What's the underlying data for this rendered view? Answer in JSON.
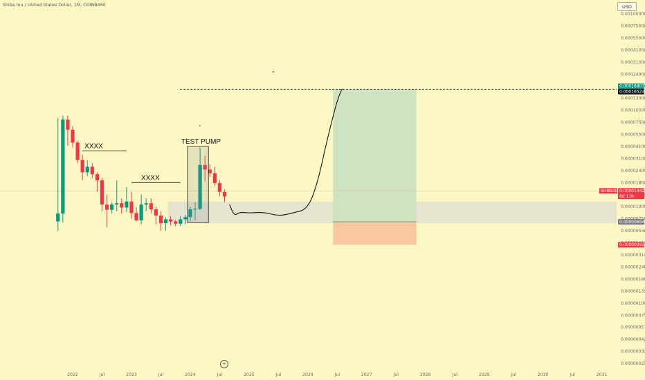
{
  "header": {
    "title": "Shiba Inu / United States Dollar, 1M, COINBASE"
  },
  "currency_button": "USD",
  "watermark": "trading-view-logo-icon",
  "price_badges": {
    "target_price": "0.00016807",
    "current_line_price": "0.00016524",
    "symbol_label": "SHIBUSD",
    "symbol_price": "0.00001442",
    "countdown": "8d 11h",
    "entry_price": "0.00000694",
    "stop_price": "0.00000393"
  },
  "annotations": {
    "xxxx_1": "XXXX",
    "xxxx_2": "XXXX",
    "test_pump": "TEST PUMP"
  },
  "colors": {
    "background": "#fdf7c3",
    "up": "#089981",
    "down": "#f23645",
    "profit_zone": "#cfe3c0",
    "loss_zone": "#f9c8a0",
    "range_zone": "#e6e3cf",
    "target_badge": "#089981",
    "current_badge": "#131722",
    "entry_badge": "#787b86",
    "stop_badge": "#f23645"
  },
  "chart_data": {
    "type": "candlestick",
    "title": "Shiba Inu / United States Dollar, 1M, COINBASE",
    "y_scale": "log",
    "y_ticks": [
      "0.00100000",
      "0.00075000",
      "0.00055000",
      "0.00041000",
      "0.00031000",
      "0.00024000",
      "0.00018000",
      "0.00013000",
      "0.00010000",
      "0.00007500",
      "0.00005500",
      "0.00004100",
      "0.00003100",
      "0.00002400",
      "0.00001800",
      "0.00001300",
      "0.00001000",
      "0.00000750",
      "0.00000550",
      "0.00000410",
      "0.00000310",
      "0.00000240",
      "0.00000180",
      "0.00000135",
      "0.00000100",
      "0.00000075",
      "0.00000057",
      "0.00000042",
      "0.00000033",
      "0.00000025"
    ],
    "x_ticks": [
      "2022",
      "Jul",
      "2023",
      "Jul",
      "2024",
      "Jul",
      "2025",
      "Jul",
      "2026",
      "Jul",
      "2027",
      "Jul",
      "2028",
      "Jul",
      "2029",
      "Jul",
      "2030",
      "Jul",
      "2031"
    ],
    "candles": [
      {
        "date": "2021-10",
        "o": 7e-06,
        "h": 8.3e-05,
        "l": 5.5e-06,
        "c": 8.5e-06
      },
      {
        "date": "2021-11",
        "o": 8.5e-06,
        "h": 8.8e-05,
        "l": 6.8e-06,
        "c": 8e-05
      },
      {
        "date": "2021-12",
        "o": 8e-05,
        "h": 8.8e-05,
        "l": 4.2e-05,
        "c": 6.2e-05
      },
      {
        "date": "2022-01",
        "o": 6.2e-05,
        "h": 6.8e-05,
        "l": 4e-05,
        "c": 4.5e-05
      },
      {
        "date": "2022-02",
        "o": 4.5e-05,
        "h": 4.7e-05,
        "l": 2.8e-05,
        "c": 3e-05
      },
      {
        "date": "2022-03",
        "o": 3e-05,
        "h": 3.4e-05,
        "l": 1.9e-05,
        "c": 2.3e-05
      },
      {
        "date": "2022-04",
        "o": 2.3e-05,
        "h": 3e-05,
        "l": 2.1e-05,
        "c": 2.6e-05
      },
      {
        "date": "2022-05",
        "o": 2.6e-05,
        "h": 2.8e-05,
        "l": 2e-05,
        "c": 2.2e-05
      },
      {
        "date": "2022-06",
        "o": 2.2e-05,
        "h": 2.3e-05,
        "l": 1.4e-05,
        "c": 1.9e-05
      },
      {
        "date": "2022-07",
        "o": 1.9e-05,
        "h": 2e-05,
        "l": 9e-06,
        "c": 1.05e-05
      },
      {
        "date": "2022-08",
        "o": 1.05e-05,
        "h": 1.3e-05,
        "l": 6e-06,
        "c": 9.3e-06
      },
      {
        "date": "2022-09",
        "o": 9.3e-06,
        "h": 1.1e-05,
        "l": 8.5e-06,
        "c": 1.05e-05
      },
      {
        "date": "2022-10",
        "o": 1.05e-05,
        "h": 1.9e-05,
        "l": 9e-06,
        "c": 1.08e-05
      },
      {
        "date": "2022-11",
        "o": 1.08e-05,
        "h": 1.2e-05,
        "l": 8.5e-06,
        "c": 9.8e-06
      },
      {
        "date": "2022-12",
        "o": 9.8e-06,
        "h": 1.6e-05,
        "l": 8.8e-06,
        "c": 1.12e-05
      },
      {
        "date": "2023-01",
        "o": 1.12e-05,
        "h": 1.4e-05,
        "l": 7.5e-06,
        "c": 8.6e-06
      },
      {
        "date": "2023-02",
        "o": 8.6e-06,
        "h": 9.9e-06,
        "l": 7e-06,
        "c": 7.2e-06
      },
      {
        "date": "2023-03",
        "o": 7.2e-06,
        "h": 1.3e-05,
        "l": 6.5e-06,
        "c": 1.05e-05
      },
      {
        "date": "2023-04",
        "o": 1.05e-05,
        "h": 1.2e-05,
        "l": 9e-06,
        "c": 1.08e-05
      },
      {
        "date": "2023-05",
        "o": 1.08e-05,
        "h": 1.2e-05,
        "l": 8.5e-06,
        "c": 9.4e-06
      },
      {
        "date": "2023-06",
        "o": 9.4e-06,
        "h": 1e-05,
        "l": 6.5e-06,
        "c": 8.1e-06
      },
      {
        "date": "2023-07",
        "o": 8.1e-06,
        "h": 9e-06,
        "l": 5.5e-06,
        "c": 6.7e-06
      },
      {
        "date": "2023-08",
        "o": 6.7e-06,
        "h": 7.8e-06,
        "l": 5.5e-06,
        "c": 7.4e-06
      },
      {
        "date": "2023-09",
        "o": 7.4e-06,
        "h": 8e-06,
        "l": 6.3e-06,
        "c": 7e-06
      },
      {
        "date": "2023-10",
        "o": 7e-06,
        "h": 7.3e-06,
        "l": 6.2e-06,
        "c": 6.6e-06
      },
      {
        "date": "2023-11",
        "o": 6.6e-06,
        "h": 8e-06,
        "l": 6.2e-06,
        "c": 7.4e-06
      },
      {
        "date": "2023-12",
        "o": 7.4e-06,
        "h": 8.2e-06,
        "l": 6.5e-06,
        "c": 7.8e-06
      },
      {
        "date": "2024-01",
        "o": 7.8e-06,
        "h": 1e-05,
        "l": 7e-06,
        "c": 9.4e-06
      },
      {
        "date": "2024-02",
        "o": 9.4e-06,
        "h": 1.1e-05,
        "l": 7.2e-06,
        "c": 9.5e-06
      },
      {
        "date": "2024-03",
        "o": 9.5e-06,
        "h": 4e-05,
        "l": 9.2e-06,
        "c": 2.7e-05
      },
      {
        "date": "2024-04",
        "o": 2.7e-05,
        "h": 3.3e-05,
        "l": 1.85e-05,
        "c": 2.45e-05
      },
      {
        "date": "2024-05",
        "o": 2.45e-05,
        "h": 2.75e-05,
        "l": 2.05e-05,
        "c": 2.25e-05
      },
      {
        "date": "2024-06",
        "o": 2.25e-05,
        "h": 2.6e-05,
        "l": 1.65e-05,
        "c": 1.78e-05
      },
      {
        "date": "2024-07",
        "o": 1.78e-05,
        "h": 1.9e-05,
        "l": 1.25e-05,
        "c": 1.4e-05
      },
      {
        "date": "2024-08",
        "o": 1.4e-05,
        "h": 1.5e-05,
        "l": 1.1e-05,
        "c": 1.25e-05
      }
    ],
    "projection_path": [
      [
        "2024-09",
        1.05e-05
      ],
      [
        "2024-10",
        8e-06
      ],
      [
        "2024-11",
        8.8e-06
      ],
      [
        "2025-01",
        8.6e-06
      ],
      [
        "2025-04",
        8.8e-06
      ],
      [
        "2025-07",
        8e-06
      ],
      [
        "2025-10",
        8.6e-06
      ],
      [
        "2026-01",
        9.5e-06
      ],
      [
        "2026-03",
        1.8e-05
      ],
      [
        "2026-05",
        5e-05
      ],
      [
        "2026-07",
        0.000125
      ],
      [
        "2026-08",
        0.000168
      ]
    ],
    "levels": {
      "target": 0.00016807,
      "current_line": 0.00016524,
      "symbol_price": 1.442e-05,
      "entry": 6.94e-06,
      "stop": 3.93e-06,
      "range_high": 1.12e-05,
      "range_low": 6.7e-06
    },
    "position_box": {
      "start": "2026-06",
      "end": "2027-11"
    },
    "test_pump_box": {
      "start": "2024-01",
      "end": "2024-05",
      "high": 4.1e-05,
      "low": 6.8e-06
    },
    "range_box_start": "2023-09",
    "xxxx_line_1": {
      "start": "2022-03",
      "end": "2022-12",
      "price": 3.7e-05
    },
    "xxxx_line_2": {
      "start": "2023-01",
      "end": "2023-11",
      "price": 1.8e-05
    }
  }
}
